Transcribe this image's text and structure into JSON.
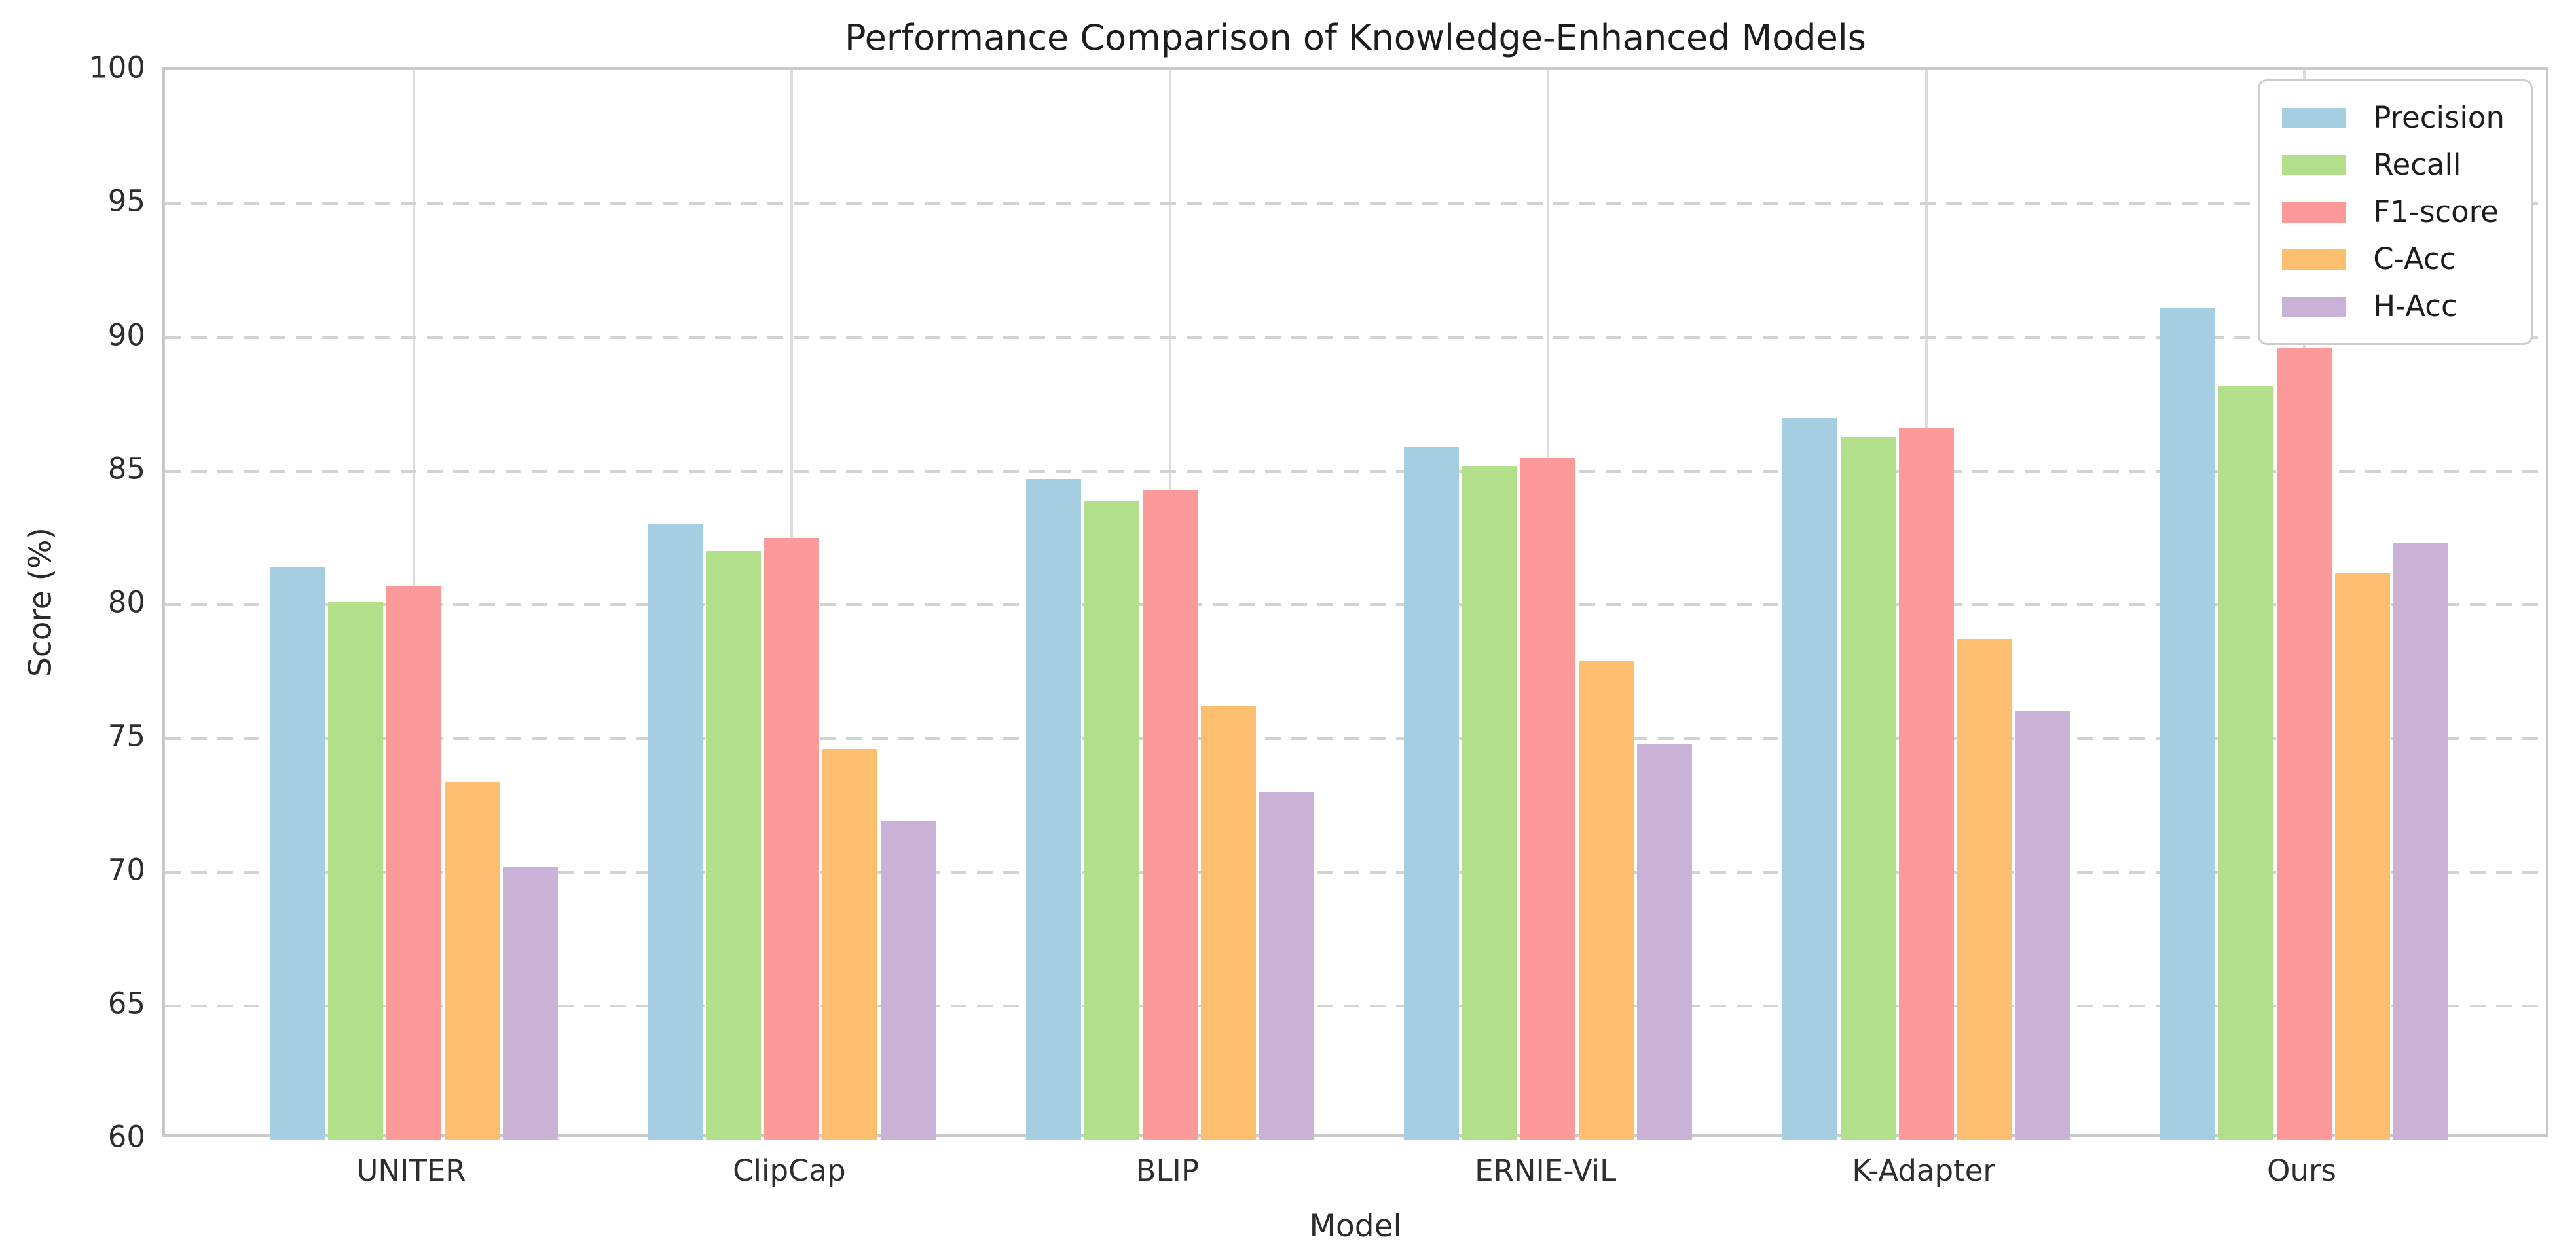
{
  "chart_data": {
    "type": "bar",
    "title": "Performance Comparison of Knowledge-Enhanced Models",
    "xlabel": "Model",
    "ylabel": "Score (%)",
    "ylim": [
      60,
      100
    ],
    "yticks": [
      60,
      65,
      70,
      75,
      80,
      85,
      90,
      95,
      100
    ],
    "categories": [
      "UNITER",
      "ClipCap",
      "BLIP",
      "ERNIE-ViL",
      "K-Adapter",
      "Ours"
    ],
    "series": [
      {
        "name": "Precision",
        "color": "#a6cee3",
        "values": [
          81.4,
          83.0,
          84.7,
          85.9,
          87.0,
          91.1
        ]
      },
      {
        "name": "Recall",
        "color": "#b2df8a",
        "values": [
          80.1,
          82.0,
          83.9,
          85.2,
          86.3,
          88.2
        ]
      },
      {
        "name": "F1-score",
        "color": "#fb9a99",
        "values": [
          80.7,
          82.5,
          84.3,
          85.5,
          86.6,
          89.6
        ]
      },
      {
        "name": "C-Acc",
        "color": "#fdbf6f",
        "values": [
          73.4,
          74.6,
          76.2,
          77.9,
          78.7,
          81.2
        ]
      },
      {
        "name": "H-Acc",
        "color": "#cab2d6",
        "values": [
          70.2,
          71.9,
          73.0,
          74.8,
          76.0,
          82.3
        ]
      }
    ],
    "legend_position": "upper-right",
    "grid": {
      "horizontal_style": "dashed",
      "vertical_style": "solid",
      "grid_color": "#d4d4d4",
      "spine_color": "#c9c9c9"
    }
  }
}
